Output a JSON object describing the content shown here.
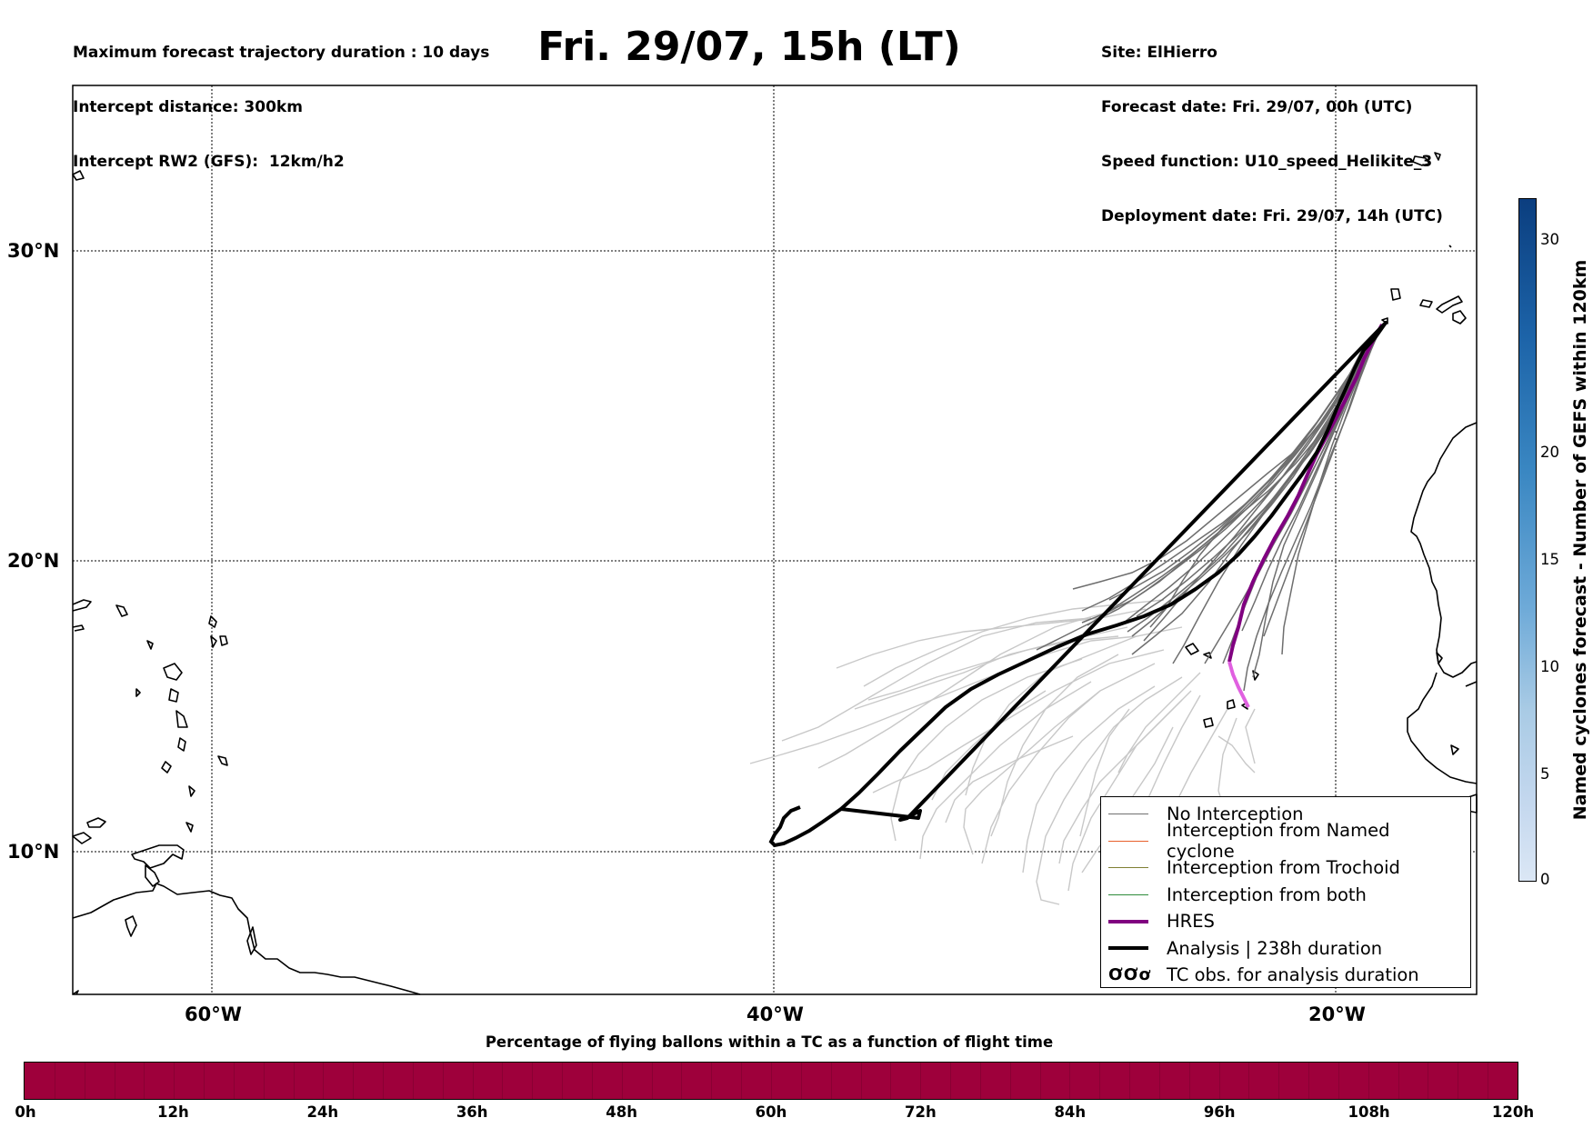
{
  "header": {
    "left": [
      "Maximum forecast trajectory duration : 10 days",
      "Intercept distance: 300km",
      "Intercept RW2 (GFS):  12km/h2"
    ],
    "title": "Fri. 29/07, 15h (LT)",
    "right": [
      "Site: ElHierro",
      "Forecast date: Fri. 29/07, 00h (UTC)",
      "Speed function: U10_speed_Helikite_3",
      "Deployment date: Fri. 29/07, 14h (UTC)"
    ]
  },
  "map": {
    "lon_labels": [
      "60°W",
      "40°W",
      "20°W"
    ],
    "lat_labels": [
      "30°N",
      "20°N",
      "10°N"
    ],
    "lon_range": [
      -65,
      -15
    ],
    "lat_range": [
      5.5,
      35.5
    ]
  },
  "legend": {
    "items": [
      {
        "label": "No Interception",
        "color": "#707070"
      },
      {
        "label": "Interception from Named cyclone",
        "color": "#e8602c"
      },
      {
        "label": "Interception from Trochoid",
        "color": "#808033"
      },
      {
        "label": "Interception from both",
        "color": "#2e8b3a"
      },
      {
        "label": "HRES",
        "color": "#800080"
      },
      {
        "label": "Analysis | 238h duration",
        "color": "#000000"
      },
      {
        "label": "TC obs. for analysis duration",
        "symbol": "ƠƠơ"
      }
    ]
  },
  "percentage_bar": {
    "title": "Percentage of flying ballons within a TC as a function of flight time",
    "ticks": [
      "0h",
      "12h",
      "24h",
      "36h",
      "48h",
      "60h",
      "72h",
      "84h",
      "96h",
      "108h",
      "120h"
    ],
    "color": "#9e003b"
  },
  "colorbar": {
    "label": "Named cyclones forecast - Number of GEFS within 120km",
    "ticks": [
      "0",
      "5",
      "10",
      "15",
      "20",
      "30"
    ]
  }
}
